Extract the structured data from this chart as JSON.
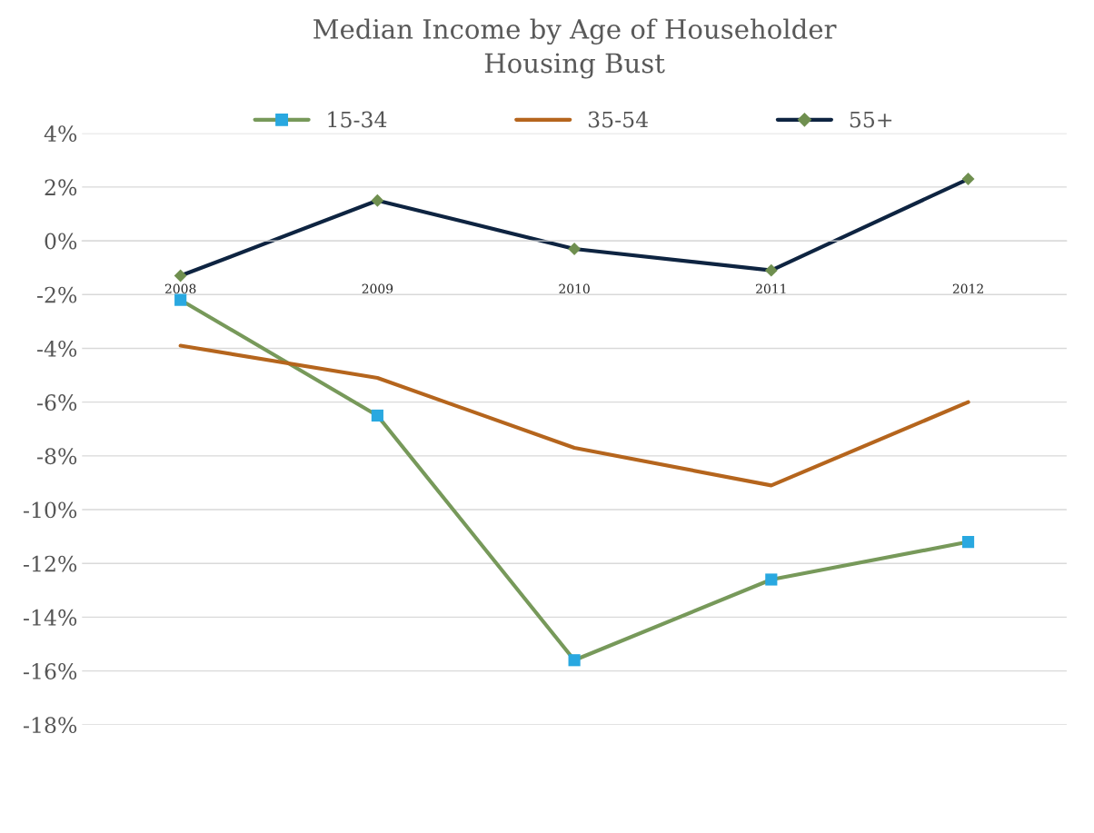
{
  "chart_data": {
    "type": "line",
    "title": "Median Income by Age of Householder\nHousing Bust",
    "categories": [
      "2008",
      "2009",
      "2010",
      "2011",
      "2012"
    ],
    "series": [
      {
        "name": "15-34",
        "color": "#77995a",
        "marker": "square",
        "colors": [
          "#29a8e0",
          "#29a8e0",
          "#29a8e0",
          "#29a8e0",
          "#29a8e0"
        ],
        "values": [
          -2.2,
          -6.5,
          -15.6,
          -12.6,
          -11.2
        ]
      },
      {
        "name": "35-54",
        "color": "#b5651d",
        "values": [
          -3.9,
          -5.1,
          -7.7,
          -9.1,
          -6.0
        ]
      },
      {
        "name": "55+",
        "color": "#0e2441",
        "marker": "diamond",
        "colors": [
          "#6f8f4f",
          "#6f8f4f",
          "#6f8f4f",
          "#6f8f4f",
          "#6f8f4f"
        ],
        "values": [
          -1.3,
          1.5,
          -0.3,
          -1.1,
          2.3
        ]
      }
    ],
    "ylim": [
      -18,
      4
    ],
    "yticks": [
      {
        "value": -18,
        "label": "-18%"
      },
      {
        "value": -16,
        "label": "-16%"
      },
      {
        "value": -14,
        "label": "-14%"
      },
      {
        "value": -12,
        "label": "-12%"
      },
      {
        "value": -10,
        "label": "-10%"
      },
      {
        "value": -8,
        "label": "-8%"
      },
      {
        "value": -6,
        "label": "-6%"
      },
      {
        "value": -4,
        "label": "-4%"
      },
      {
        "value": -2,
        "label": "-2%"
      },
      {
        "value": 0,
        "label": "0%"
      },
      {
        "value": 2,
        "label": "2%"
      },
      {
        "value": 4,
        "label": "4%"
      }
    ],
    "grid": "y",
    "legend": "top",
    "line_style": "solid"
  }
}
